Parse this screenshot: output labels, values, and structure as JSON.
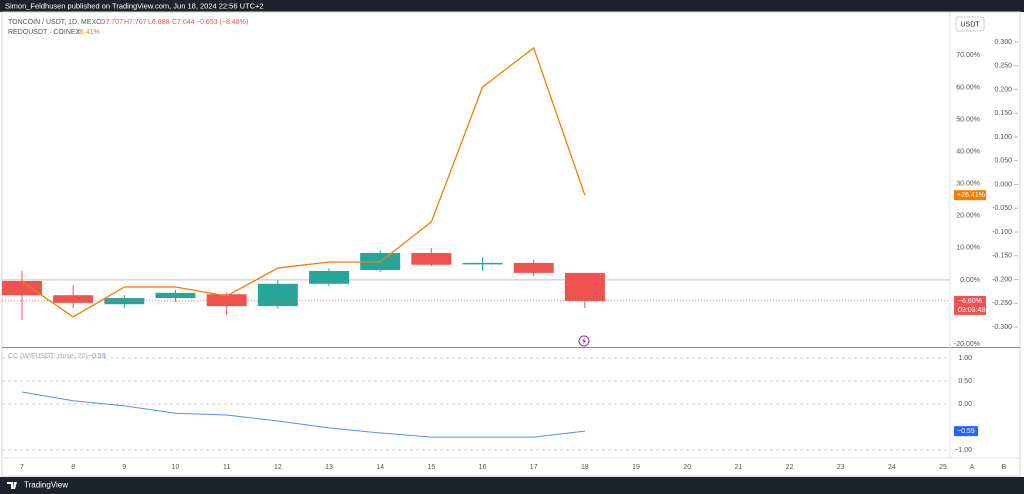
{
  "header": {
    "publisher": "Simon_Feldhusen published on TradingView.com, Jun 18, 2024 22:56 UTC+2"
  },
  "footer": {
    "brand": "TradingView"
  },
  "currency_button": "USDT",
  "x_axis_buttons": [
    "A",
    "B"
  ],
  "chart_data": [
    {
      "type": "candlestick",
      "title": "TONCOIN / USDT, 1D, MEXC",
      "ohlc_texts": [
        "O7.707",
        "H7.707",
        "L6.888",
        "C7.044",
        "−0.653 (−8.48%)"
      ],
      "categories": [
        "7",
        "8",
        "9",
        "10",
        "11",
        "12",
        "13",
        "14",
        "15",
        "16",
        "17",
        "18",
        "19",
        "20",
        "21",
        "22",
        "23",
        "24",
        "25"
      ],
      "open": [
        -0.203,
        -0.233,
        -0.252,
        -0.239,
        -0.231,
        -0.256,
        -0.209,
        -0.18,
        -0.144,
        -0.167,
        -0.165,
        -0.186,
        null,
        null,
        null,
        null,
        null,
        null,
        null
      ],
      "high": [
        -0.182,
        -0.212,
        -0.233,
        -0.222,
        -0.226,
        -0.201,
        -0.176,
        -0.138,
        -0.134,
        -0.153,
        -0.159,
        -0.186,
        null,
        null,
        null,
        null,
        null,
        null,
        null
      ],
      "low": [
        -0.285,
        -0.26,
        -0.26,
        -0.247,
        -0.275,
        -0.262,
        -0.214,
        -0.184,
        -0.172,
        -0.182,
        -0.193,
        -0.26,
        null,
        null,
        null,
        null,
        null,
        null,
        null
      ],
      "close": [
        -0.233,
        -0.249,
        -0.239,
        -0.228,
        -0.256,
        -0.209,
        -0.182,
        -0.144,
        -0.169,
        -0.165,
        -0.186,
        -0.245,
        null,
        null,
        null,
        null,
        null,
        null,
        null
      ],
      "up_color": "#26a69a",
      "down_color": "#ef5350",
      "last_change_label": "−6.60%",
      "countdown": "03:03:48",
      "ylim": [
        -0.342,
        0.363
      ],
      "yticks": [
        {
          "value": 0.3,
          "label": "0.300"
        },
        {
          "value": 0.25,
          "label": "0.250"
        },
        {
          "value": 0.2,
          "label": "0.200"
        },
        {
          "value": 0.15,
          "label": "0.150"
        },
        {
          "value": 0.1,
          "label": "0.100"
        },
        {
          "value": 0.05,
          "label": "0.050"
        },
        {
          "value": 0,
          "label": "0.000"
        },
        {
          "value": -0.05,
          "label": "-0.050"
        },
        {
          "value": -0.1,
          "label": "-0.100"
        },
        {
          "value": -0.15,
          "label": "-0.150"
        },
        {
          "value": -0.2,
          "label": "-0.200"
        },
        {
          "value": -0.25,
          "label": "-0.250"
        },
        {
          "value": -0.3,
          "label": "-0.300"
        }
      ],
      "y2lim": [
        -20.9,
        83.5
      ],
      "y2ticks": [
        {
          "value": 70,
          "label": "70.00%"
        },
        {
          "value": 60,
          "label": "60.00%"
        },
        {
          "value": 50,
          "label": "50.00%"
        },
        {
          "value": 40,
          "label": "40.00%"
        },
        {
          "value": 30,
          "label": "30.00%"
        },
        {
          "value": 20,
          "label": "20.00%"
        },
        {
          "value": 10,
          "label": "10.00%"
        },
        {
          "value": 0,
          "label": "0.00%"
        },
        {
          "value": -20,
          "label": "-20.00%"
        }
      ],
      "series": [
        {
          "name": "REDOUSDT · COINEX",
          "color": "#f57c00",
          "axis": "y2",
          "values": [
            -0.6,
            -11.5,
            -2.2,
            -2.2,
            -5.0,
            3.7,
            5.6,
            5.6,
            18.1,
            60.1,
            72.3,
            26.41,
            null,
            null,
            null,
            null,
            null,
            null,
            null
          ],
          "legend_value": "26.41%",
          "last_value_label": "+26.41%"
        }
      ]
    },
    {
      "type": "line",
      "title": "CC (WIFUSDT, close, 20)",
      "legend_value": "−0.59",
      "last_value_label": "−0.59",
      "color": "#5b8def",
      "values": [
        0.26,
        0.07,
        -0.04,
        -0.2,
        -0.24,
        -0.37,
        -0.52,
        -0.63,
        -0.72,
        -0.72,
        -0.72,
        -0.59,
        null,
        null,
        null,
        null,
        null,
        null,
        null
      ],
      "ylim": [
        -1.174,
        1.174
      ],
      "yticks": [
        {
          "value": 1,
          "label": "1.00"
        },
        {
          "value": 0.5,
          "label": "0.50"
        },
        {
          "value": 0,
          "label": "0.00"
        },
        {
          "value": -1,
          "label": "−1.00"
        }
      ]
    }
  ]
}
